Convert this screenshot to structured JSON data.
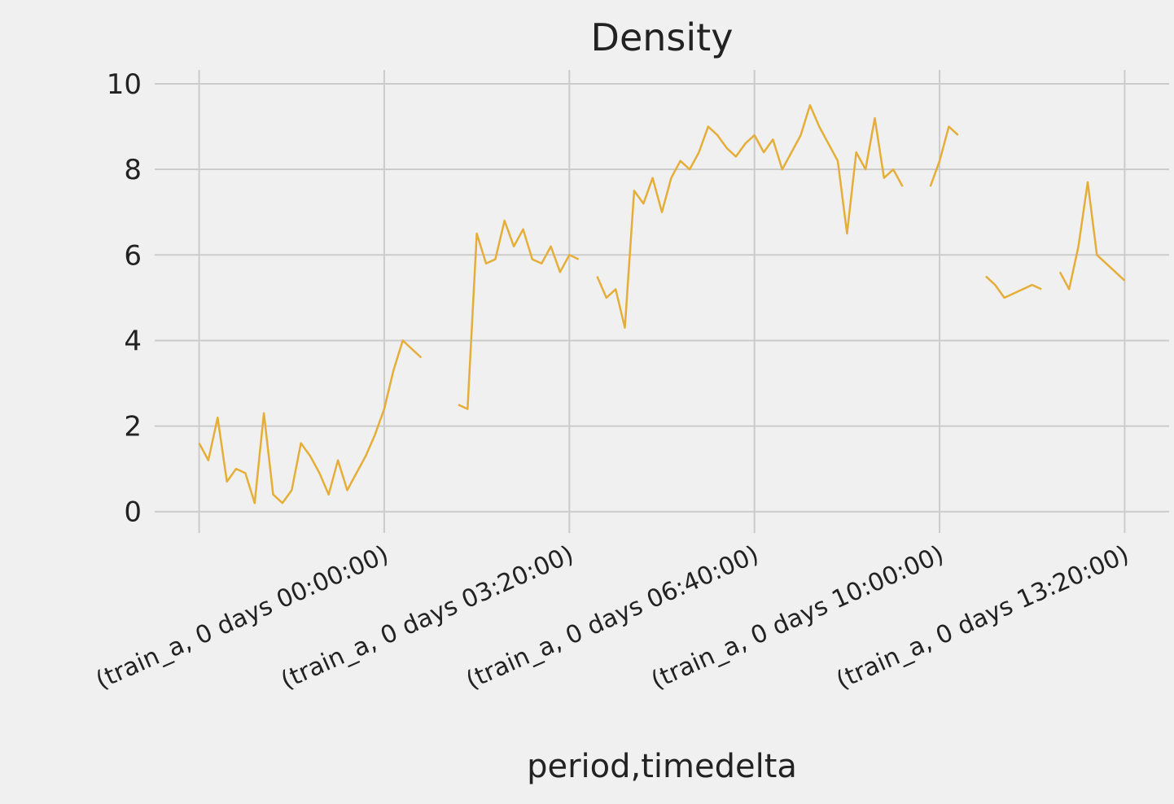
{
  "chart_data": {
    "type": "line",
    "title": "Density",
    "x_label": "period,timedelta",
    "x": [
      0,
      5,
      10,
      15,
      20,
      25,
      30,
      35,
      40,
      45,
      50,
      55,
      60,
      65,
      70,
      75,
      80,
      85,
      90,
      95,
      100,
      105,
      110,
      115,
      120,
      125,
      130,
      135,
      140,
      145,
      150,
      155,
      160,
      165,
      170,
      175,
      180,
      185,
      190,
      195,
      200,
      205,
      210,
      215,
      220,
      225,
      230,
      235,
      240,
      245,
      250,
      255,
      260,
      265,
      270,
      275,
      280,
      285,
      290,
      295,
      300,
      305,
      310,
      315,
      320,
      325,
      330,
      335,
      340,
      345,
      350,
      355,
      360,
      365,
      370,
      375,
      380,
      385,
      390,
      395,
      400,
      405,
      410,
      415,
      420,
      425,
      430,
      435,
      440,
      445,
      450,
      455,
      460,
      465,
      470,
      475,
      480,
      485,
      490,
      495,
      500
    ],
    "values": [
      1.6,
      1.2,
      2.2,
      0.7,
      1.0,
      0.9,
      0.2,
      2.3,
      0.4,
      0.2,
      0.5,
      1.6,
      1.3,
      0.9,
      0.4,
      1.2,
      0.5,
      0.9,
      1.3,
      1.8,
      2.4,
      3.3,
      4.0,
      3.8,
      3.6,
      null,
      null,
      null,
      2.5,
      2.4,
      6.5,
      5.8,
      5.9,
      6.8,
      6.2,
      6.6,
      5.9,
      5.8,
      6.2,
      5.6,
      6.0,
      5.9,
      null,
      5.5,
      5.0,
      5.2,
      4.3,
      7.5,
      7.2,
      7.8,
      7.0,
      7.8,
      8.2,
      8.0,
      8.4,
      9.0,
      8.8,
      8.5,
      8.3,
      8.6,
      8.8,
      8.4,
      8.7,
      8.0,
      8.4,
      8.8,
      9.5,
      9.0,
      8.6,
      8.2,
      6.5,
      8.4,
      8.0,
      9.2,
      7.8,
      8.0,
      7.6,
      null,
      null,
      7.6,
      8.2,
      9.0,
      8.8,
      null,
      null,
      5.5,
      5.3,
      5.0,
      5.1,
      5.2,
      5.3,
      5.2,
      null,
      5.6,
      5.2,
      6.2,
      7.7,
      6.0,
      5.8,
      5.6,
      5.4
    ],
    "color": "#e5ae38",
    "xlim": [
      -24,
      524
    ],
    "ylim": [
      -0.5,
      10.4
    ],
    "xticks": [
      {
        "value": 0,
        "label": null
      },
      {
        "value": 100,
        "label": "(train_a, 0 days 00:00:00)"
      },
      {
        "value": 200,
        "label": "(train_a, 0 days 03:20:00)"
      },
      {
        "value": 300,
        "label": "(train_a, 0 days 06:40:00)"
      },
      {
        "value": 400,
        "label": "(train_a, 0 days 10:00:00)"
      },
      {
        "value": 500,
        "label": "(train_a, 0 days 13:20:00)"
      }
    ],
    "yticks": [
      0,
      2,
      4,
      6,
      8,
      10
    ],
    "grid": true
  }
}
